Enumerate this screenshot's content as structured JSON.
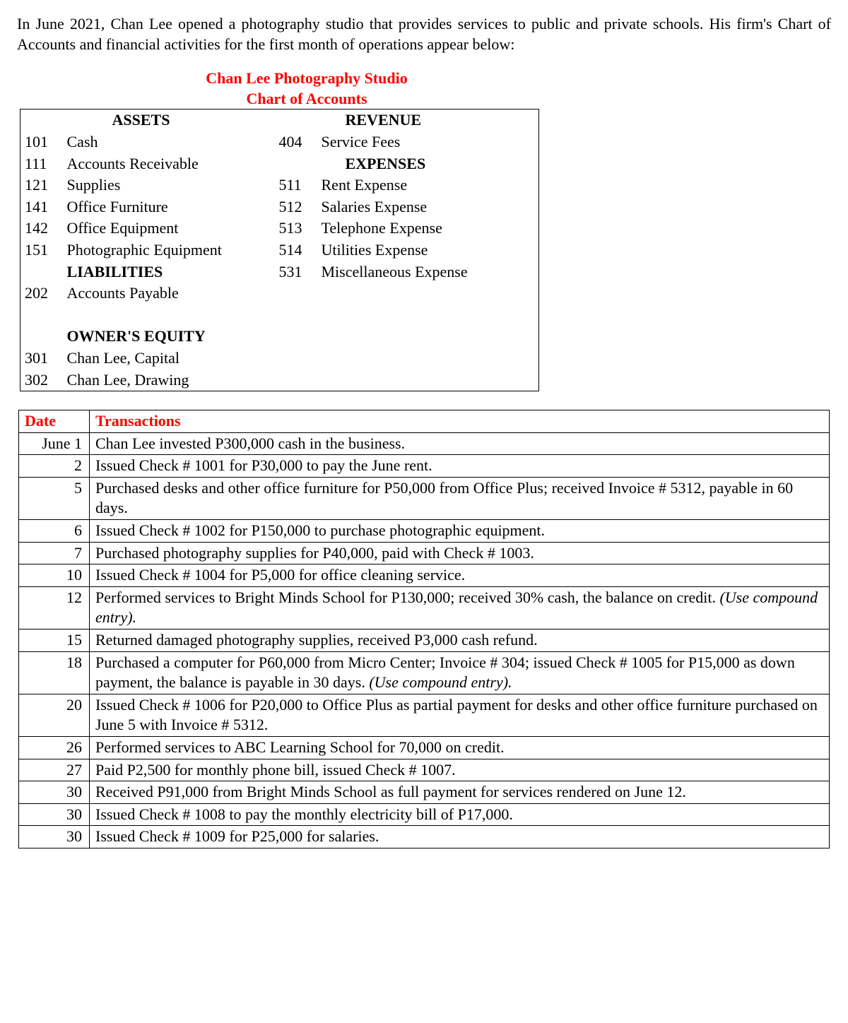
{
  "intro": "In June 2021, Chan Lee opened a photography studio that provides services to public and private schools. His firm's Chart of Accounts and financial activities for the first month of operations appear below:",
  "heading": {
    "line1": "Chan Lee Photography Studio",
    "line2": "Chart of Accounts"
  },
  "sections": {
    "assets": "ASSETS",
    "liabilities": "LIABILITIES",
    "equity": "OWNER'S EQUITY",
    "revenue": "REVENUE",
    "expenses": "EXPENSES"
  },
  "chart": {
    "left": [
      {
        "num": "101",
        "name": "Cash"
      },
      {
        "num": "111",
        "name": "Accounts Receivable"
      },
      {
        "num": "121",
        "name": "Supplies"
      },
      {
        "num": "141",
        "name": "Office Furniture"
      },
      {
        "num": "142",
        "name": "Office Equipment"
      },
      {
        "num": "151",
        "name": "Photographic Equipment"
      }
    ],
    "liab": [
      {
        "num": "202",
        "name": "Accounts Payable"
      }
    ],
    "equity": [
      {
        "num": "301",
        "name": "Chan Lee, Capital"
      },
      {
        "num": "302",
        "name": "Chan Lee, Drawing"
      }
    ],
    "rev": [
      {
        "num": "404",
        "name": "Service Fees"
      }
    ],
    "exp": [
      {
        "num": "511",
        "name": "Rent Expense"
      },
      {
        "num": "512",
        "name": "Salaries Expense"
      },
      {
        "num": "513",
        "name": "Telephone Expense"
      },
      {
        "num": "514",
        "name": "Utilities Expense"
      },
      {
        "num": "531",
        "name": "Miscellaneous Expense"
      }
    ]
  },
  "txHeaders": {
    "date": "Date",
    "desc": "Transactions"
  },
  "tx": [
    {
      "date": "June 1",
      "desc": "Chan Lee invested P300,000 cash in the business."
    },
    {
      "date": "2",
      "desc": "Issued Check # 1001 for P30,000 to pay the June rent."
    },
    {
      "date": "5",
      "desc": "Purchased desks and other office furniture for P50,000 from Office Plus; received Invoice # 5312, payable in 60 days."
    },
    {
      "date": "6",
      "desc": "Issued Check # 1002 for P150,000 to purchase photographic equipment."
    },
    {
      "date": "7",
      "desc": "Purchased photography supplies for P40,000, paid with Check # 1003."
    },
    {
      "date": "10",
      "desc": "Issued Check # 1004 for P5,000 for office cleaning service."
    },
    {
      "date": "12",
      "desc": "Performed services to Bright Minds School for P130,000; received 30% cash, the balance on credit. <span class=\"italic\">(Use compound entry).</span>"
    },
    {
      "date": "15",
      "desc": "Returned damaged photography supplies, received P3,000 cash refund."
    },
    {
      "date": "18",
      "desc": "Purchased a computer for P60,000 from Micro Center; Invoice # 304; issued Check # 1005 for P15,000 as down payment, the balance is payable in 30 days. <span class=\"italic\">(Use compound entry).</span>"
    },
    {
      "date": "20",
      "desc": "Issued Check # 1006 for P20,000 to Office Plus as partial payment for desks and other office furniture purchased on June 5 with Invoice # 5312."
    },
    {
      "date": "26",
      "desc": "Performed services to ABC Learning School for 70,000 on credit."
    },
    {
      "date": "27",
      "desc": "Paid P2,500 for monthly phone bill, issued Check # 1007."
    },
    {
      "date": "30",
      "desc": "Received P91,000 from Bright Minds School as full payment for services rendered on June 12."
    },
    {
      "date": "30",
      "desc": "Issued Check # 1008 to pay the monthly electricity bill of P17,000."
    },
    {
      "date": "30",
      "desc": "Issued Check # 1009 for P25,000 for salaries."
    }
  ],
  "colors": {
    "accent": "#ff0000",
    "text": "#000000",
    "background": "#ffffff",
    "border": "#000000"
  }
}
